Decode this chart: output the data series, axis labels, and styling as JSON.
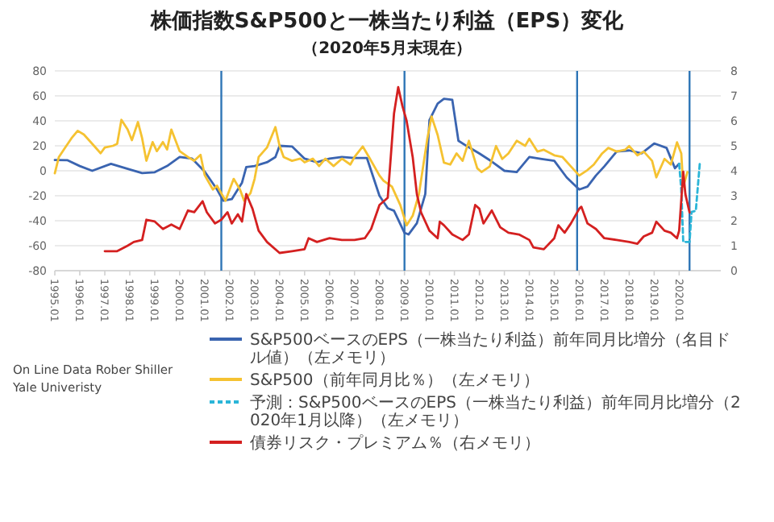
{
  "chart_data": {
    "type": "line",
    "title": "株価指数S&P500と一株当たり利益（EPS）変化",
    "subtitle": "（2020年5月末現在）",
    "xlim": [
      "1995-01",
      "2021-09"
    ],
    "xticks": [
      {
        "value": "1995-01",
        "label": "1995.01"
      },
      {
        "value": "1996-01",
        "label": "1996.01"
      },
      {
        "value": "1997-01",
        "label": "1997.01"
      },
      {
        "value": "1998-01",
        "label": "1998.01"
      },
      {
        "value": "1999-01",
        "label": "1999.01"
      },
      {
        "value": "2000-01",
        "label": "2000.01"
      },
      {
        "value": "2001-01",
        "label": "2001.01"
      },
      {
        "value": "2002-01",
        "label": "2002.01"
      },
      {
        "value": "2003-01",
        "label": "2003.01"
      },
      {
        "value": "2004-01",
        "label": "2004.01"
      },
      {
        "value": "2005-01",
        "label": "2005.01"
      },
      {
        "value": "2006-01",
        "label": "2006.01"
      },
      {
        "value": "2007-01",
        "label": "2007.01"
      },
      {
        "value": "2008-01",
        "label": "2008.01"
      },
      {
        "value": "2009-01",
        "label": "2009.01"
      },
      {
        "value": "2010-01",
        "label": "2010.01"
      },
      {
        "value": "2011-01",
        "label": "2011.01"
      },
      {
        "value": "2012-01",
        "label": "2012.01"
      },
      {
        "value": "2013-01",
        "label": "2013.01"
      },
      {
        "value": "2014-01",
        "label": "2014.01"
      },
      {
        "value": "2015-01",
        "label": "2015.01"
      },
      {
        "value": "2016-01",
        "label": "2016.01"
      },
      {
        "value": "2017-01",
        "label": "2017.01"
      },
      {
        "value": "2018-01",
        "label": "2018.01"
      },
      {
        "value": "2019-01",
        "label": "2019.01"
      },
      {
        "value": "2020-01",
        "label": "2020.01"
      }
    ],
    "ylim": [
      -80,
      80
    ],
    "yticks": [
      -80,
      -60,
      -40,
      -20,
      0,
      20,
      40,
      60,
      80
    ],
    "y2lim": [
      0,
      8
    ],
    "y2ticks": [
      0,
      1,
      2,
      3,
      4,
      5,
      6,
      7,
      8
    ],
    "grid": "y",
    "legend": "bottom",
    "series": [
      {
        "name": "S&P500ベースのEPS（一株当たり利益）前年同月比増分（名目ドル値）（左メモリ）",
        "color": "#3a64b0",
        "x": [
          "1995-01",
          "1995-07",
          "1996-01",
          "1996-07",
          "1997-04",
          "1998-01",
          "1998-07",
          "1999-01",
          "1999-07",
          "2000-01",
          "2000-07",
          "2001-01",
          "2001-07",
          "2001-10",
          "2002-02",
          "2002-07",
          "2002-09",
          "2003-01",
          "2003-07",
          "2003-11",
          "2004-01",
          "2004-07",
          "2005-01",
          "2005-07",
          "2006-01",
          "2006-07",
          "2007-01",
          "2007-07",
          "2008-01",
          "2008-05",
          "2008-08",
          "2009-01",
          "2009-03",
          "2009-07",
          "2009-11",
          "2010-01",
          "2010-05",
          "2010-08",
          "2010-12",
          "2011-03",
          "2011-07",
          "2012-01",
          "2012-07",
          "2013-01",
          "2013-07",
          "2014-01",
          "2014-07",
          "2015-01",
          "2015-07",
          "2016-01",
          "2016-05",
          "2016-09",
          "2017-01",
          "2017-07",
          "2018-01",
          "2018-07",
          "2019-01",
          "2019-07",
          "2019-11",
          "2020-01"
        ],
        "values": [
          8.6,
          8.5,
          3.8,
          0,
          5.6,
          1,
          -1.8,
          -1.2,
          3.8,
          11,
          9.7,
          -0.6,
          -15,
          -24,
          -22.7,
          -9.5,
          3,
          3.8,
          6.8,
          11,
          20,
          19.5,
          9.7,
          6.8,
          9.7,
          11,
          10.3,
          10.3,
          -20,
          -30,
          -32,
          -49.7,
          -51,
          -42,
          -18.6,
          40.5,
          53.8,
          57.6,
          56.8,
          24,
          19.8,
          13.9,
          7.4,
          0,
          -1,
          11,
          9.5,
          8,
          -5.3,
          -15,
          -12.7,
          -3.8,
          3.5,
          15.4,
          16.3,
          13.9,
          21.9,
          18.3,
          2,
          5.6
        ]
      },
      {
        "name": "S&P500（前年同月比％）（左メモリ）",
        "color": "#f5c231",
        "x": [
          "1995-01",
          "1995-03",
          "1995-06",
          "1995-09",
          "1995-12",
          "1996-03",
          "1996-07",
          "1996-11",
          "1997-01",
          "1997-05",
          "1997-07",
          "1997-09",
          "1997-12",
          "1998-02",
          "1998-05",
          "1998-07",
          "1998-09",
          "1998-12",
          "1999-02",
          "1999-05",
          "1999-07",
          "1999-09",
          "2000-01",
          "2000-05",
          "2000-08",
          "2000-11",
          "2001-01",
          "2001-05",
          "2001-07",
          "2001-11",
          "2002-01",
          "2002-03",
          "2002-06",
          "2002-08",
          "2002-11",
          "2003-01",
          "2003-03",
          "2003-07",
          "2003-11",
          "2004-01",
          "2004-03",
          "2004-07",
          "2004-11",
          "2005-01",
          "2005-05",
          "2005-08",
          "2005-11",
          "2006-03",
          "2006-07",
          "2006-11",
          "2007-01",
          "2007-05",
          "2007-08",
          "2008-01",
          "2008-03",
          "2008-07",
          "2008-11",
          "2009-02",
          "2009-05",
          "2009-08",
          "2009-12",
          "2010-02",
          "2010-05",
          "2010-08",
          "2010-11",
          "2011-02",
          "2011-05",
          "2011-08",
          "2011-12",
          "2012-02",
          "2012-06",
          "2012-09",
          "2012-12",
          "2013-03",
          "2013-07",
          "2013-11",
          "2014-01",
          "2014-05",
          "2014-08",
          "2015-01",
          "2015-05",
          "2015-09",
          "2016-01",
          "2016-05",
          "2016-08",
          "2016-12",
          "2017-03",
          "2017-07",
          "2017-11",
          "2018-01",
          "2018-05",
          "2018-08",
          "2018-12",
          "2019-02",
          "2019-06",
          "2019-09",
          "2019-12",
          "2020-02",
          "2020-03",
          "2020-05"
        ],
        "values": [
          -2,
          11,
          18.6,
          26,
          32,
          29,
          21.6,
          14,
          18.6,
          20,
          21.6,
          40.8,
          33,
          24.5,
          39,
          26,
          8,
          23,
          15.7,
          23,
          17,
          33,
          15.7,
          11,
          8,
          12.7,
          -3.5,
          -15,
          -12,
          -24,
          -15,
          -6.5,
          -15,
          -24,
          -18,
          -6.5,
          11,
          18.6,
          35,
          20,
          11,
          8,
          9.7,
          6.8,
          9.7,
          3.8,
          9.7,
          3.8,
          9.7,
          5,
          11,
          19.5,
          11,
          -3.8,
          -8,
          -12.7,
          -27.5,
          -43.7,
          -36,
          -18.6,
          25.7,
          43.5,
          28.7,
          6.5,
          5,
          13.9,
          8,
          24,
          2,
          -1,
          3.5,
          19.8,
          9.5,
          13.9,
          24,
          20,
          25.7,
          15.4,
          16.8,
          12.4,
          11,
          3.5,
          -3.8,
          0.6,
          5,
          13.9,
          18.3,
          15.4,
          16.8,
          19.8,
          12.4,
          15.4,
          8,
          -5.3,
          9.5,
          5,
          22.8,
          13.9,
          -12.7,
          -1
        ]
      },
      {
        "name": "予測：S&P500ベースのEPS（一株当たり利益）前年同月比増分（2020年1月以降）（左メモリ）",
        "color": "#2bb5d8",
        "line_style": "dashed",
        "x": [
          "2020-01",
          "2020-02",
          "2020-03",
          "2020-06",
          "2020-07",
          "2020-09",
          "2020-11"
        ],
        "values": [
          5.6,
          -15,
          -57,
          -57,
          -33,
          -32,
          8
        ]
      },
      {
        "name": "債券リスク・プレミアム％（右メモリ）",
        "color": "#d42020",
        "axis": "y2",
        "x": [
          "1997-01",
          "1997-07",
          "1997-12",
          "1998-03",
          "1998-07",
          "1998-09",
          "1999-01",
          "1999-05",
          "1999-09",
          "2000-01",
          "2000-05",
          "2000-08",
          "2000-12",
          "2001-02",
          "2001-06",
          "2001-09",
          "2001-12",
          "2002-02",
          "2002-05",
          "2002-07",
          "2002-09",
          "2002-12",
          "2003-03",
          "2003-07",
          "2004-01",
          "2004-07",
          "2005-01",
          "2005-03",
          "2005-07",
          "2006-01",
          "2006-07",
          "2007-01",
          "2007-06",
          "2007-09",
          "2008-01",
          "2008-05",
          "2008-08",
          "2008-10",
          "2008-12",
          "2009-02",
          "2009-05",
          "2009-07",
          "2009-09",
          "2010-01",
          "2010-05",
          "2010-06",
          "2010-08",
          "2010-12",
          "2011-05",
          "2011-08",
          "2011-11",
          "2012-01",
          "2012-03",
          "2012-07",
          "2012-11",
          "2013-03",
          "2013-08",
          "2014-01",
          "2014-03",
          "2014-08",
          "2015-01",
          "2015-03",
          "2015-06",
          "2015-09",
          "2016-01",
          "2016-02",
          "2016-05",
          "2016-09",
          "2017-01",
          "2017-07",
          "2018-01",
          "2018-05",
          "2018-08",
          "2018-12",
          "2019-02",
          "2019-06",
          "2019-09",
          "2019-12",
          "2020-01",
          "2020-03",
          "2020-04",
          "2020-06"
        ],
        "values": [
          0.78,
          0.78,
          1,
          1.15,
          1.23,
          2.04,
          1.97,
          1.67,
          1.85,
          1.67,
          2.41,
          2.34,
          2.78,
          2.34,
          1.89,
          2.04,
          2.34,
          1.89,
          2.26,
          1.97,
          3.07,
          2.48,
          1.6,
          1.15,
          0.71,
          0.78,
          0.86,
          1.3,
          1.15,
          1.3,
          1.23,
          1.23,
          1.3,
          1.67,
          2.63,
          2.92,
          6.3,
          7.35,
          6.6,
          6,
          4.55,
          3.07,
          2.33,
          1.6,
          1.3,
          1.96,
          1.82,
          1.45,
          1.23,
          1.45,
          2.63,
          2.48,
          1.89,
          2.41,
          1.74,
          1.52,
          1.45,
          1.23,
          0.93,
          0.86,
          1.3,
          1.82,
          1.52,
          1.89,
          2.48,
          2.56,
          1.89,
          1.67,
          1.3,
          1.23,
          1.15,
          1.08,
          1.37,
          1.52,
          1.96,
          1.6,
          1.52,
          1.3,
          1.6,
          3.96,
          3.07,
          2.33
        ]
      }
    ],
    "ref_lines": [
      {
        "axis": "x",
        "value": "2001-09",
        "color": "#2e75b6"
      },
      {
        "axis": "x",
        "value": "2009-01",
        "color": "#2e75b6"
      },
      {
        "axis": "x",
        "value": "2015-12",
        "color": "#2e75b6"
      },
      {
        "axis": "x",
        "value": "2020-06",
        "color": "#2e75b6"
      }
    ],
    "annotations": [
      "On Line Data Rober Shiller",
      "Yale Univeristy"
    ]
  }
}
